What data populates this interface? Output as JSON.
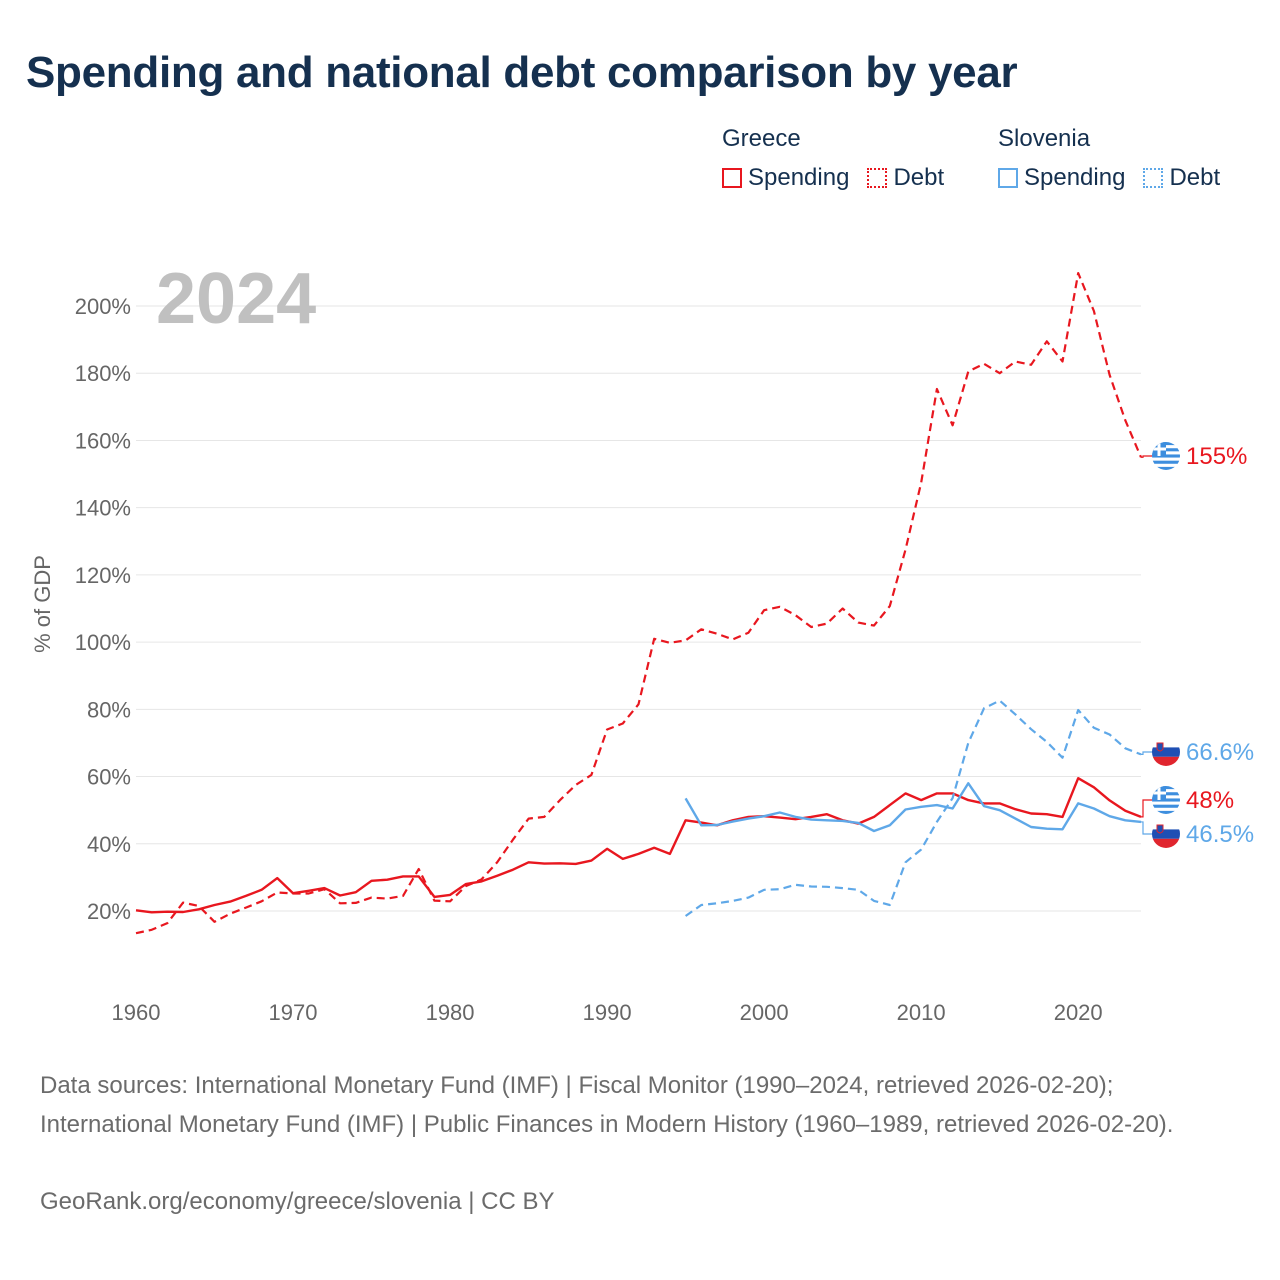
{
  "title": "Spending and national debt comparison by year",
  "legend": {
    "greece": {
      "title": "Greece",
      "spending": "Spending",
      "debt": "Debt"
    },
    "slovenia": {
      "title": "Slovenia",
      "spending": "Spending",
      "debt": "Debt"
    }
  },
  "colors": {
    "greece": "#e8171f",
    "slovenia": "#5fa8e8",
    "grid": "#e6e6e6",
    "axis_text": "#666666",
    "year_watermark": "#c0c0c0",
    "title": "#15304f"
  },
  "chart_data": {
    "type": "line",
    "year_label": "2024",
    "ylabel": "% of GDP",
    "xlabel": "",
    "xlim": [
      1960,
      2024
    ],
    "ylim": [
      0,
      215
    ],
    "x_ticks": [
      1960,
      1970,
      1980,
      1990,
      2000,
      2010,
      2020
    ],
    "x_tick_labels": [
      "1960",
      "1970",
      "1980",
      "1990",
      "2000",
      "2010",
      "2020"
    ],
    "y_ticks": [
      20,
      40,
      60,
      80,
      100,
      120,
      140,
      160,
      180,
      200
    ],
    "y_tick_labels": [
      "20%",
      "40%",
      "60%",
      "80%",
      "100%",
      "120%",
      "140%",
      "160%",
      "180%",
      "200%"
    ],
    "series": [
      {
        "name": "Greece Spending",
        "country": "Greece",
        "metric": "Spending",
        "color": "#e8171f",
        "dash": "solid",
        "start_year": 1960,
        "values": [
          20.2,
          19.6,
          19.8,
          19.7,
          20.5,
          21.8,
          22.8,
          24.5,
          26.3,
          29.8,
          25.3,
          26,
          26.8,
          24.6,
          25.6,
          29.0,
          29.3,
          30.3,
          30.3,
          24.2,
          24.8,
          28.0,
          28.8,
          30.5,
          32.3,
          34.5,
          34.1,
          34.2,
          34.0,
          35.0,
          38.5,
          35.5,
          37.0,
          38.8,
          37.0,
          47.0,
          46.3,
          45.5,
          47.0,
          48.0,
          48.2,
          47.8,
          47.3,
          48.0,
          48.8,
          47.0,
          46.0,
          48.0,
          51.5,
          55.0,
          53.0,
          55.0,
          55.0,
          53.0,
          52.0,
          52.0,
          50.3,
          49.0,
          48.8,
          48.0,
          59.5,
          56.8,
          52.9,
          49.8,
          48.0
        ],
        "end_label": "48%"
      },
      {
        "name": "Greece Debt",
        "country": "Greece",
        "metric": "Debt",
        "color": "#e8171f",
        "dash": "dashed",
        "start_year": 1960,
        "values": [
          13.4,
          14.4,
          16.4,
          22.5,
          21.5,
          16.8,
          19.2,
          21.0,
          22.9,
          25.5,
          25.2,
          25.2,
          26.5,
          22.3,
          22.4,
          24.0,
          23.7,
          24.5,
          32.5,
          23.1,
          22.9,
          27.4,
          29.4,
          34.5,
          41.2,
          47.5,
          48.0,
          53.0,
          57.5,
          60.5,
          74.0,
          75.8,
          81.5,
          101.0,
          99.8,
          100.5,
          103.8,
          102.5,
          100.8,
          102.8,
          109.5,
          110.5,
          108.0,
          104.5,
          105.5,
          110.0,
          105.8,
          104.9,
          110.7,
          127.5,
          147.5,
          175.3,
          164.5,
          180.5,
          182.8,
          180.0,
          183.5,
          182.5,
          189.5,
          183.5,
          209.8,
          198.5,
          179.5,
          166.0,
          155.0
        ],
        "end_label": "155%"
      },
      {
        "name": "Slovenia Spending",
        "country": "Slovenia",
        "metric": "Spending",
        "color": "#5fa8e8",
        "dash": "solid",
        "start_year": 1995,
        "values": [
          53.5,
          45.5,
          45.6,
          46.6,
          47.5,
          48.2,
          49.3,
          48.0,
          47.2,
          47.0,
          46.8,
          46.2,
          43.8,
          45.5,
          50.2,
          51.0,
          51.5,
          50.5,
          58.0,
          51.2,
          50.0,
          47.5,
          45.0,
          44.5,
          44.3,
          52.0,
          50.5,
          48.2,
          47.0,
          46.5
        ],
        "end_label": "46.5%"
      },
      {
        "name": "Slovenia Debt",
        "country": "Slovenia",
        "metric": "Debt",
        "color": "#5fa8e8",
        "dash": "dashed",
        "start_year": 1995,
        "values": [
          18.5,
          21.8,
          22.3,
          23.0,
          24.0,
          26.3,
          26.5,
          27.8,
          27.3,
          27.2,
          26.8,
          26.3,
          23.0,
          21.8,
          34.5,
          38.3,
          46.5,
          53.6,
          70.0,
          80.3,
          82.6,
          78.5,
          74.1,
          70.3,
          65.6,
          79.8,
          74.5,
          72.5,
          68.4,
          66.6
        ],
        "end_label": "66.6%"
      }
    ]
  },
  "footer": {
    "sources": "Data sources: International Monetary Fund (IMF) | Fiscal Monitor (1990–2024, retrieved 2026-02-20); International Monetary Fund (IMF) | Public Finances in Modern History (1960–1989, retrieved 2026-02-20).",
    "credit": "GeoRank.org/economy/greece/slovenia | CC BY"
  }
}
